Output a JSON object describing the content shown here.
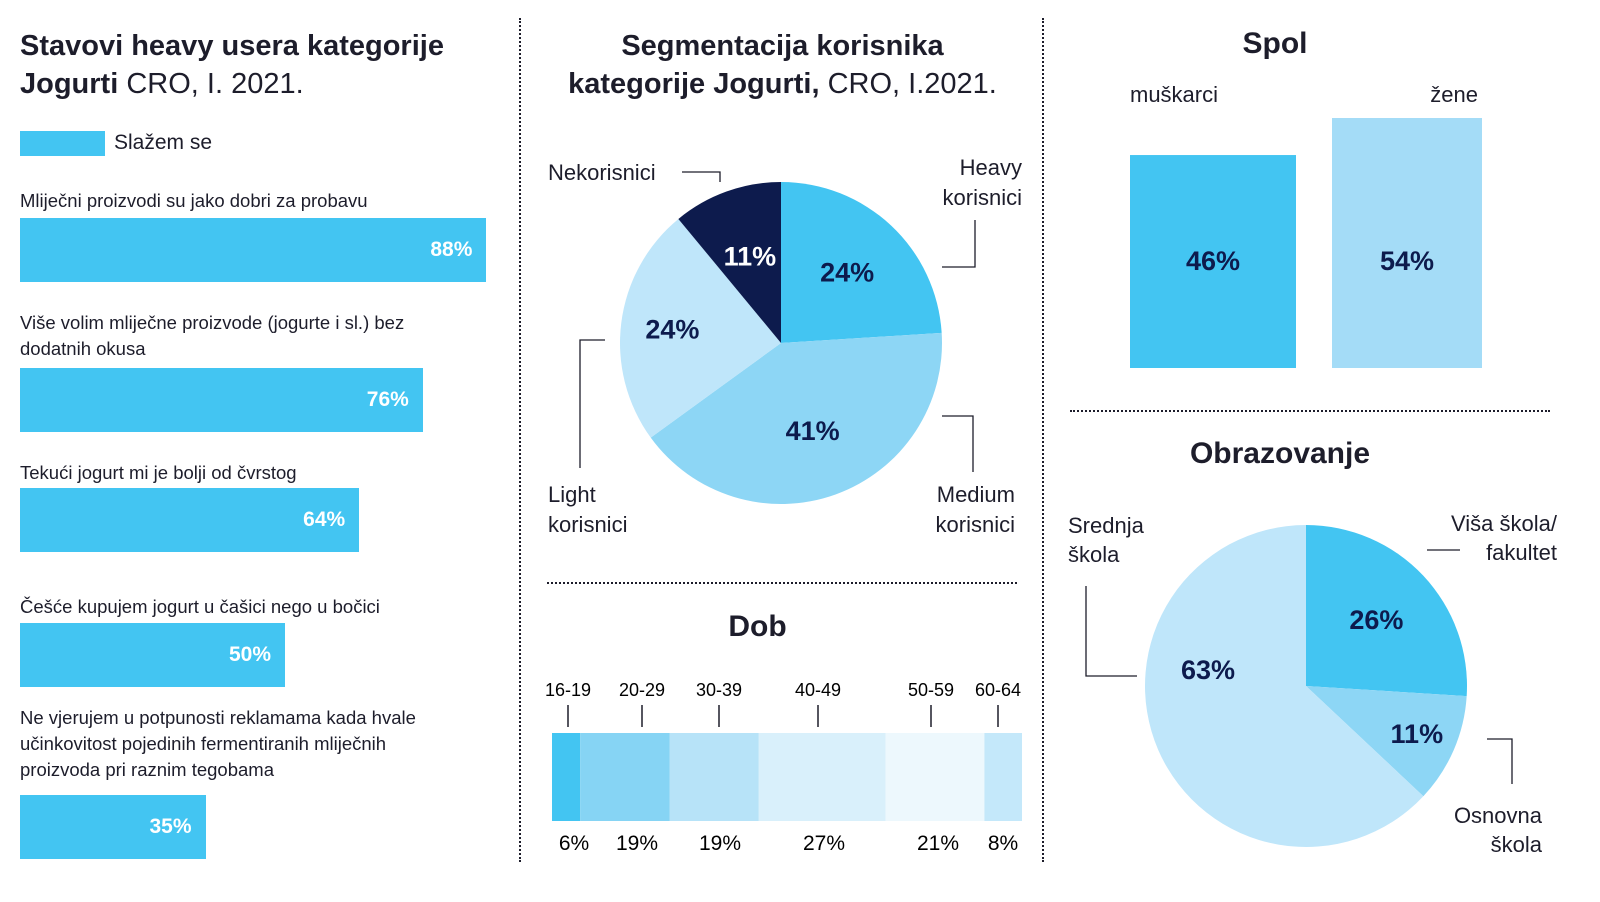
{
  "left": {
    "title_bold_1": "Stavovi heavy usera kategorije",
    "title_bold_2": "Jogurti",
    "title_light": " CRO, I. 2021.",
    "legend_label": "Slažem se"
  },
  "middle": {
    "title_line1": "Segmentacija korisnika",
    "title_bold_2": "kategorije Jogurti,",
    "title_light_2": " CRO, I.2021.",
    "dob_title": "Dob"
  },
  "right": {
    "spol_title": "Spol",
    "obrazovanje_title": "Obrazovanje"
  },
  "colors": {
    "bar": "#43c5f2",
    "heavy": "#43c5f2",
    "medium": "#8dd6f5",
    "light": "#bfe6fa",
    "non": "#0d1b4d",
    "male": "#43c5f2",
    "female": "#a4dcf7"
  },
  "chart_data": [
    {
      "type": "bar",
      "orientation": "horizontal",
      "title": "Stavovi heavy usera kategorije Jogurti CRO, I. 2021.",
      "legend": [
        "Slažem se"
      ],
      "categories": [
        "Mliječni proizvodi su jako dobri za probavu",
        "Više volim mliječne proizvode (jogurte i sl.)  bez dodatnih okusa",
        "Tekući jogurt mi je bolji od čvrstog",
        "Češće kupujem jogurt u čašici nego u bočici",
        "Ne vjerujem u potpunosti reklamama kada hvale učinkovitost pojedinih fermentiranih mliječnih proizvoda pri raznim tegobama"
      ],
      "values": [
        88,
        76,
        64,
        50,
        35
      ],
      "value_labels": [
        "88%",
        "76%",
        "64%",
        "50%",
        "35%"
      ]
    },
    {
      "type": "pie",
      "title": "Segmentacija korisnika kategorije Jogurti, CRO, I.2021.",
      "categories": [
        "Heavy korisnici",
        "Medium korisnici",
        "Light korisnici",
        "Nekorisnici"
      ],
      "label_lines": [
        [
          "Heavy",
          "korisnici"
        ],
        [
          "Medium",
          "korisnici"
        ],
        [
          "Light",
          "korisnici"
        ],
        [
          "Nekorisnici"
        ]
      ],
      "values": [
        24,
        41,
        24,
        11
      ],
      "value_labels": [
        "24%",
        "41%",
        "24%",
        "11%"
      ]
    },
    {
      "type": "bar",
      "orientation": "stacked-horizontal",
      "title": "Dob",
      "categories": [
        "16-19",
        "20-29",
        "30-39",
        "40-49",
        "50-59",
        "60-64"
      ],
      "values": [
        6,
        19,
        19,
        27,
        21,
        8
      ],
      "value_labels": [
        "6%",
        "19%",
        "19%",
        "27%",
        "21%",
        "8%"
      ],
      "colors": [
        "#43c5f2",
        "#86d4f4",
        "#b7e3f8",
        "#d9f0fb",
        "#edf8fd",
        "#c4e8fa"
      ]
    },
    {
      "type": "bar",
      "title": "Spol",
      "categories": [
        "muškarci",
        "žene"
      ],
      "values": [
        46,
        54
      ],
      "value_labels": [
        "46%",
        "54%"
      ]
    },
    {
      "type": "pie",
      "title": "Obrazovanje",
      "categories": [
        "Viša škola/ fakultet",
        "Osnovna škola",
        "Srednja škola"
      ],
      "label_lines": [
        [
          "Viša škola/",
          "fakultet"
        ],
        [
          "Osnovna",
          "škola"
        ],
        [
          "Srednja",
          "škola"
        ]
      ],
      "values": [
        26,
        11,
        63
      ],
      "value_labels": [
        "26%",
        "11%",
        "63%"
      ]
    }
  ]
}
